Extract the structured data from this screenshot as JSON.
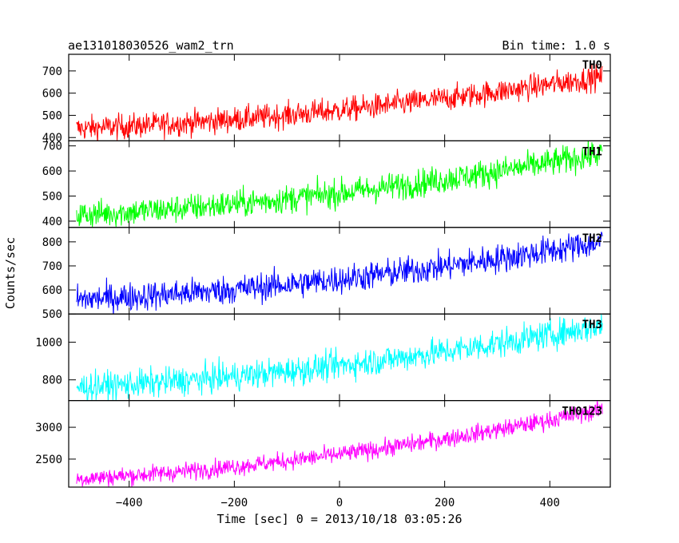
{
  "header": {
    "title": "ae131018030526_wam2_trn",
    "bin_time": "Bin time: 1.0 s"
  },
  "chart_data": {
    "type": "line",
    "xlabel": "Time [sec] 0 = 2013/10/18 03:05:26",
    "ylabel": "Counts/sec",
    "xlim": [
      -515,
      515
    ],
    "x_ticks": [
      -400,
      -200,
      0,
      200,
      400
    ],
    "x_tick_labels": [
      "−400",
      "−200",
      "0",
      "200",
      "400"
    ],
    "x_range": [
      -500,
      500
    ],
    "panels": [
      {
        "name": "TH0",
        "color": "#ff0000",
        "ylim": [
          385,
          775
        ],
        "y_ticks": [
          400,
          500,
          600,
          700
        ],
        "start": 440,
        "end": 675,
        "noise": 28
      },
      {
        "name": "TH1",
        "color": "#00ff00",
        "ylim": [
          375,
          720
        ],
        "y_ticks": [
          400,
          500,
          600,
          700
        ],
        "start": 425,
        "end": 670,
        "noise": 28
      },
      {
        "name": "TH2",
        "color": "#0000ff",
        "ylim": [
          500,
          860
        ],
        "y_ticks": [
          500,
          600,
          700,
          800
        ],
        "start": 560,
        "end": 800,
        "noise": 30
      },
      {
        "name": "TH3",
        "color": "#00ffff",
        "ylim": [
          690,
          1150
        ],
        "y_ticks": [
          800,
          1000
        ],
        "start": 760,
        "end": 1090,
        "noise": 38
      },
      {
        "name": "TH0123",
        "color": "#ff00ff",
        "ylim": [
          2060,
          3420
        ],
        "y_ticks": [
          2500,
          3000
        ],
        "start": 2190,
        "end": 3280,
        "noise": 70
      }
    ]
  }
}
